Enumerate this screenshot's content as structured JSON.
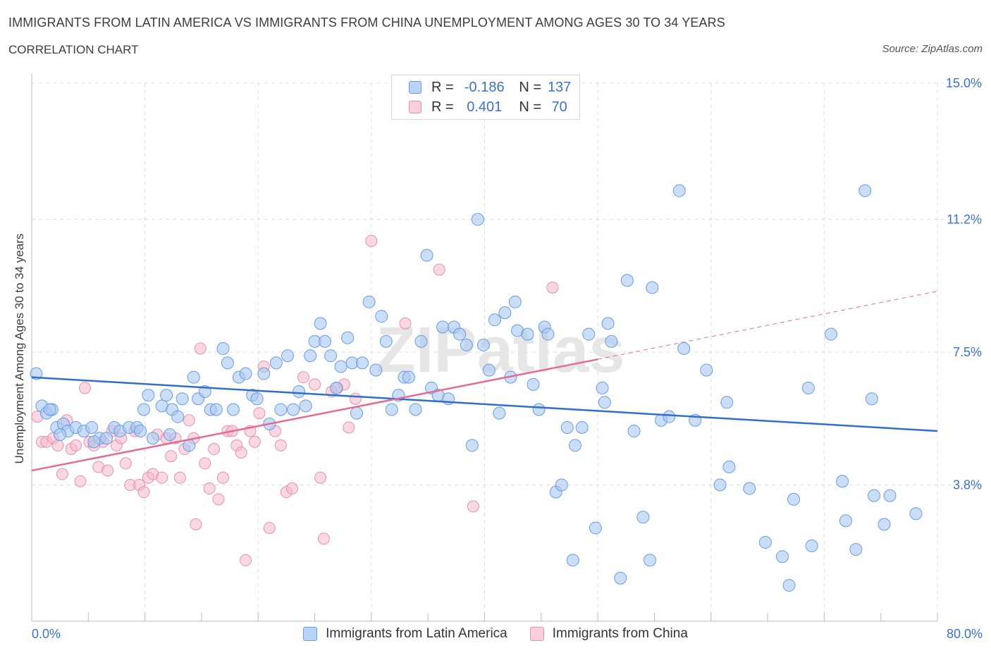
{
  "header": {
    "title": "IMMIGRANTS FROM LATIN AMERICA VS IMMIGRANTS FROM CHINA UNEMPLOYMENT AMONG AGES 30 TO 34 YEARS",
    "subtitle": "CORRELATION CHART",
    "source": "Source: ZipAtlas.com"
  },
  "watermark": "ZIPatlas",
  "legend": {
    "rows": [
      {
        "r_label": "R =",
        "r_value": "-0.186",
        "n_label": "N =",
        "n_value": "137",
        "color": "#a9c8f2"
      },
      {
        "r_label": "R =",
        "r_value": "0.401",
        "n_label": "N =",
        "n_value": "70",
        "color": "#f5b8cb"
      }
    ]
  },
  "bottom_legend": [
    "Immigrants from Latin America",
    "Immigrants from China"
  ],
  "colors": {
    "blue_fill": "#a9c8f2",
    "blue_stroke": "#6a9be0",
    "blue_line": "#2f6fcc",
    "pink_fill": "#f5b8cb",
    "pink_stroke": "#e690ad",
    "pink_line": "#e46a93",
    "tick_label": "#3b73c8",
    "grid": "#dddddd"
  },
  "chart_data": {
    "type": "scatter",
    "title": "IMMIGRANTS FROM LATIN AMERICA VS IMMIGRANTS FROM CHINA UNEMPLOYMENT AMONG AGES 30 TO 34 YEARS",
    "xlabel": "",
    "ylabel": "Unemployment Among Ages 30 to 34 years",
    "xlim": [
      0,
      80
    ],
    "ylim": [
      0,
      15
    ],
    "x_tick_labels": [
      "0.0%",
      "80.0%"
    ],
    "y_tick_labels": [
      "3.8%",
      "7.5%",
      "11.2%",
      "15.0%"
    ],
    "y_ticks": [
      3.8,
      7.5,
      11.2,
      15.0
    ],
    "grid": true,
    "legend_position": "top-center",
    "series": [
      {
        "name": "Immigrants from Latin America",
        "color": "#a9c8f2",
        "trend": {
          "x": [
            0,
            80
          ],
          "y": [
            6.8,
            5.3
          ]
        },
        "points": [
          [
            0.4,
            6.9
          ],
          [
            0.9,
            6.0
          ],
          [
            1.3,
            5.8
          ],
          [
            1.8,
            5.9
          ],
          [
            2.2,
            5.4
          ],
          [
            2.8,
            5.5
          ],
          [
            3.2,
            5.3
          ],
          [
            3.9,
            5.4
          ],
          [
            4.6,
            5.3
          ],
          [
            5.3,
            5.4
          ],
          [
            6.0,
            5.1
          ],
          [
            6.6,
            5.1
          ],
          [
            7.3,
            5.4
          ],
          [
            7.8,
            5.3
          ],
          [
            8.6,
            5.4
          ],
          [
            9.3,
            5.4
          ],
          [
            9.9,
            5.9
          ],
          [
            10.3,
            6.3
          ],
          [
            10.7,
            5.1
          ],
          [
            11.5,
            6.0
          ],
          [
            11.9,
            6.3
          ],
          [
            12.4,
            5.9
          ],
          [
            12.9,
            5.7
          ],
          [
            13.3,
            6.2
          ],
          [
            13.9,
            4.9
          ],
          [
            14.3,
            6.8
          ],
          [
            14.7,
            6.2
          ],
          [
            15.3,
            6.4
          ],
          [
            15.8,
            5.9
          ],
          [
            16.3,
            5.9
          ],
          [
            16.9,
            7.6
          ],
          [
            17.3,
            7.2
          ],
          [
            17.8,
            5.9
          ],
          [
            18.3,
            6.8
          ],
          [
            18.9,
            6.9
          ],
          [
            19.5,
            6.3
          ],
          [
            19.9,
            6.2
          ],
          [
            20.5,
            6.9
          ],
          [
            21.0,
            5.5
          ],
          [
            21.6,
            7.2
          ],
          [
            22.0,
            5.9
          ],
          [
            22.6,
            7.4
          ],
          [
            23.1,
            5.9
          ],
          [
            23.6,
            6.4
          ],
          [
            24.2,
            6.0
          ],
          [
            24.6,
            7.4
          ],
          [
            25.0,
            7.8
          ],
          [
            25.5,
            8.3
          ],
          [
            25.9,
            7.8
          ],
          [
            26.4,
            7.4
          ],
          [
            26.9,
            6.5
          ],
          [
            27.3,
            7.1
          ],
          [
            27.9,
            7.9
          ],
          [
            28.3,
            7.2
          ],
          [
            28.7,
            5.8
          ],
          [
            29.2,
            7.2
          ],
          [
            29.8,
            8.9
          ],
          [
            30.4,
            7.0
          ],
          [
            30.9,
            8.5
          ],
          [
            31.3,
            7.8
          ],
          [
            31.8,
            5.9
          ],
          [
            32.4,
            6.3
          ],
          [
            32.9,
            6.8
          ],
          [
            33.3,
            6.8
          ],
          [
            33.9,
            5.9
          ],
          [
            34.4,
            7.8
          ],
          [
            34.9,
            10.2
          ],
          [
            35.3,
            6.5
          ],
          [
            35.9,
            6.3
          ],
          [
            36.3,
            8.2
          ],
          [
            36.8,
            6.2
          ],
          [
            37.3,
            8.2
          ],
          [
            37.8,
            8.0
          ],
          [
            38.4,
            7.7
          ],
          [
            38.9,
            4.9
          ],
          [
            39.4,
            11.2
          ],
          [
            39.9,
            7.7
          ],
          [
            40.4,
            7.0
          ],
          [
            40.9,
            8.4
          ],
          [
            41.3,
            5.8
          ],
          [
            41.8,
            8.6
          ],
          [
            42.3,
            6.8
          ],
          [
            42.7,
            8.9
          ],
          [
            42.9,
            8.1
          ],
          [
            43.8,
            8.0
          ],
          [
            44.3,
            6.6
          ],
          [
            44.8,
            5.9
          ],
          [
            45.3,
            8.2
          ],
          [
            45.6,
            8.0
          ],
          [
            46.3,
            3.6
          ],
          [
            46.8,
            3.8
          ],
          [
            47.3,
            5.4
          ],
          [
            47.8,
            1.7
          ],
          [
            48.0,
            4.9
          ],
          [
            48.6,
            5.4
          ],
          [
            49.2,
            8.0
          ],
          [
            49.8,
            2.6
          ],
          [
            50.4,
            6.5
          ],
          [
            50.6,
            6.1
          ],
          [
            50.9,
            8.3
          ],
          [
            51.2,
            7.8
          ],
          [
            52.0,
            1.2
          ],
          [
            52.6,
            9.5
          ],
          [
            53.2,
            5.3
          ],
          [
            54.0,
            2.9
          ],
          [
            54.6,
            1.7
          ],
          [
            54.8,
            9.3
          ],
          [
            55.6,
            5.6
          ],
          [
            56.3,
            5.7
          ],
          [
            57.2,
            12.0
          ],
          [
            57.6,
            7.6
          ],
          [
            58.6,
            5.6
          ],
          [
            59.6,
            7.0
          ],
          [
            60.8,
            3.8
          ],
          [
            61.4,
            6.1
          ],
          [
            61.6,
            4.3
          ],
          [
            63.4,
            3.7
          ],
          [
            64.8,
            2.2
          ],
          [
            66.3,
            1.8
          ],
          [
            66.9,
            1.0
          ],
          [
            67.3,
            3.4
          ],
          [
            68.6,
            6.5
          ],
          [
            68.9,
            2.1
          ],
          [
            70.6,
            8.0
          ],
          [
            71.6,
            3.9
          ],
          [
            71.9,
            2.8
          ],
          [
            72.8,
            2.0
          ],
          [
            73.6,
            12.0
          ],
          [
            74.2,
            6.2
          ],
          [
            74.4,
            3.5
          ],
          [
            75.3,
            2.7
          ],
          [
            75.8,
            3.5
          ],
          [
            78.1,
            3.0
          ],
          [
            1.6,
            5.9
          ],
          [
            2.5,
            5.2
          ],
          [
            5.5,
            5.0
          ],
          [
            9.6,
            5.3
          ],
          [
            12.2,
            5.2
          ]
        ]
      },
      {
        "name": "Immigrants from China",
        "color": "#f5b8cb",
        "trend": {
          "x": [
            0,
            50
          ],
          "y": [
            4.2,
            7.3
          ]
        },
        "trend_extension": {
          "x": [
            50,
            80
          ],
          "y": [
            7.3,
            9.2
          ]
        },
        "points": [
          [
            0.5,
            5.7
          ],
          [
            0.9,
            5.0
          ],
          [
            1.3,
            5.0
          ],
          [
            1.9,
            5.1
          ],
          [
            2.3,
            4.9
          ],
          [
            2.7,
            4.1
          ],
          [
            3.1,
            5.6
          ],
          [
            3.5,
            4.8
          ],
          [
            3.9,
            4.9
          ],
          [
            4.3,
            3.9
          ],
          [
            4.7,
            6.5
          ],
          [
            5.1,
            5.0
          ],
          [
            5.5,
            4.9
          ],
          [
            5.9,
            4.3
          ],
          [
            6.3,
            5.0
          ],
          [
            6.7,
            4.2
          ],
          [
            7.1,
            5.3
          ],
          [
            7.5,
            4.9
          ],
          [
            7.9,
            5.1
          ],
          [
            8.3,
            4.4
          ],
          [
            8.7,
            3.8
          ],
          [
            9.1,
            5.3
          ],
          [
            9.5,
            3.8
          ],
          [
            9.9,
            3.6
          ],
          [
            10.3,
            4.0
          ],
          [
            10.7,
            4.1
          ],
          [
            11.1,
            5.2
          ],
          [
            11.5,
            4.0
          ],
          [
            11.9,
            5.1
          ],
          [
            12.3,
            4.6
          ],
          [
            12.7,
            5.1
          ],
          [
            13.1,
            4.0
          ],
          [
            13.5,
            4.8
          ],
          [
            13.9,
            5.6
          ],
          [
            14.3,
            5.1
          ],
          [
            14.5,
            2.7
          ],
          [
            14.9,
            7.6
          ],
          [
            15.3,
            4.4
          ],
          [
            15.7,
            3.7
          ],
          [
            16.1,
            4.8
          ],
          [
            16.5,
            3.4
          ],
          [
            16.9,
            4.0
          ],
          [
            17.3,
            5.3
          ],
          [
            17.7,
            5.3
          ],
          [
            18.1,
            4.9
          ],
          [
            18.5,
            4.7
          ],
          [
            18.9,
            1.7
          ],
          [
            19.3,
            5.3
          ],
          [
            19.7,
            5.0
          ],
          [
            20.1,
            5.8
          ],
          [
            20.5,
            7.1
          ],
          [
            21.0,
            2.6
          ],
          [
            21.5,
            5.3
          ],
          [
            22.0,
            4.9
          ],
          [
            22.5,
            3.6
          ],
          [
            23.0,
            3.7
          ],
          [
            24.0,
            6.8
          ],
          [
            25.0,
            6.6
          ],
          [
            25.5,
            4.0
          ],
          [
            25.8,
            2.3
          ],
          [
            26.5,
            6.4
          ],
          [
            27.0,
            6.5
          ],
          [
            27.6,
            6.6
          ],
          [
            28.0,
            5.4
          ],
          [
            28.6,
            6.2
          ],
          [
            30.0,
            10.6
          ],
          [
            33.0,
            8.3
          ],
          [
            36.0,
            9.8
          ],
          [
            39.0,
            3.2
          ],
          [
            46.0,
            9.3
          ]
        ]
      }
    ]
  }
}
